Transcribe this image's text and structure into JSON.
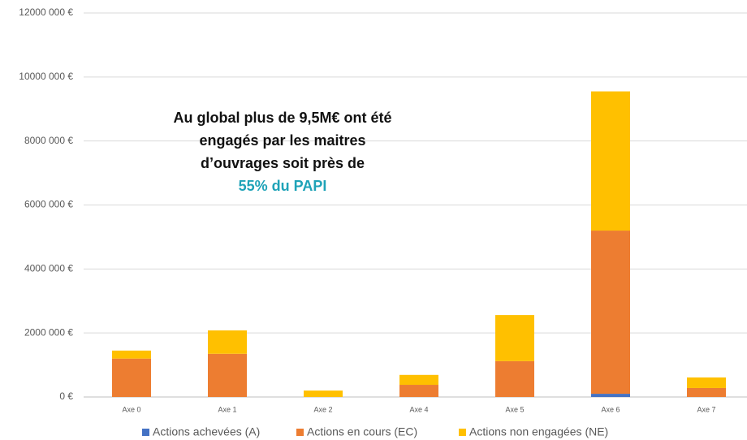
{
  "chart_data": {
    "type": "stacked_bar",
    "annotation": [
      "Au global plus de 9,5M€ ont été",
      "engagés par les maitres",
      "d’ouvrages soit près de",
      "55% du PAPI"
    ],
    "categories": [
      "Axe 0",
      "Axe 1",
      "Axe 2",
      "Axe 4",
      "Axe 5",
      "Axe 6",
      "Axe 7"
    ],
    "series": [
      {
        "name": "Actions achevées (A)",
        "color": "#4472c4",
        "values": [
          0,
          0,
          0,
          0,
          0,
          100000,
          0
        ]
      },
      {
        "name": "Actions en cours (EC)",
        "color": "#ed7d31",
        "values": [
          1200000,
          1350000,
          0,
          380000,
          1120000,
          5100000,
          280000
        ]
      },
      {
        "name": "Actions non engagées (NE)",
        "color": "#ffc000",
        "values": [
          250000,
          730000,
          200000,
          310000,
          1440000,
          4350000,
          330000
        ]
      }
    ],
    "ylim": [
      0,
      12000000
    ],
    "yticks": [
      {
        "value": 0,
        "label": "0 €"
      },
      {
        "value": 2000000,
        "label": "2000 000 €"
      },
      {
        "value": 4000000,
        "label": "4000 000 €"
      },
      {
        "value": 6000000,
        "label": "6000 000 €"
      },
      {
        "value": 8000000,
        "label": "8000 000 €"
      },
      {
        "value": 10000000,
        "label": "10000 000 €"
      },
      {
        "value": 12000000,
        "label": "12000 000 €"
      }
    ],
    "grid": true,
    "legend": "bottom"
  }
}
